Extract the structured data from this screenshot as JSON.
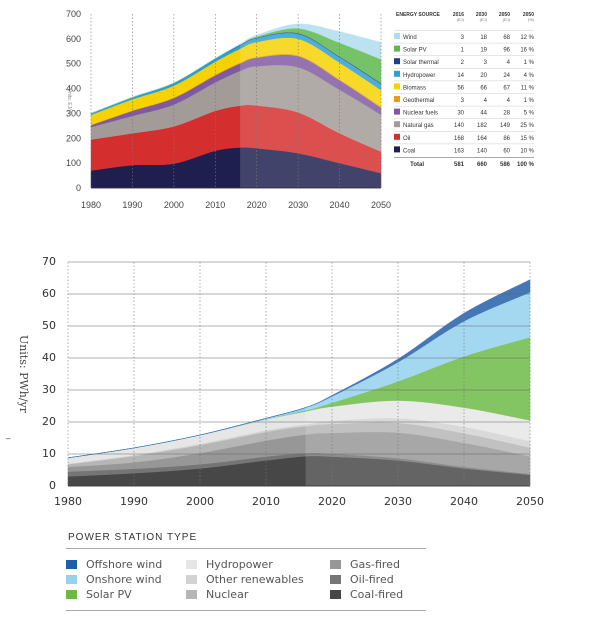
{
  "colors": {
    "c1": {
      "Wind": "#b0dcef",
      "Solar PV": "#5cb84a",
      "Solar thermal": "#1f3f86",
      "Hydropower": "#2a9fd2",
      "Biomass": "#f5d200",
      "Geothermal": "#e79a1e",
      "Nuclear fuels": "#7f5aa2",
      "Natural gas": "#a39b98",
      "Oil": "#d42f2e",
      "Coal": "#1e1f4e"
    },
    "c2": {
      "Offshore wind": "#1f5ea8",
      "Onshore wind": "#93d1ef",
      "Solar PV": "#6cba45",
      "Hydropower": "#e6e6e6",
      "Other renewables": "#d2d2d2",
      "Nuclear": "#b6b6b6",
      "Gas-fired": "#979797",
      "Oil-fired": "#757575",
      "Coal-fired": "#474747"
    }
  },
  "chart_data": [
    {
      "type": "area",
      "title": "",
      "xlabel": "",
      "ylabel": "Units: EJ/yr",
      "x": [
        1980,
        1990,
        2000,
        2010,
        2016,
        2020,
        2030,
        2040,
        2050
      ],
      "xticks": [
        1980,
        1990,
        2000,
        2010,
        2020,
        2030,
        2040,
        2050
      ],
      "ylim": [
        0,
        700
      ],
      "yticks": [
        0,
        100,
        200,
        300,
        400,
        500,
        600,
        700
      ],
      "grid": "vertical dotted",
      "forecast_start": 2016,
      "series": [
        {
          "name": "Coal",
          "values": [
            70,
            92,
            98,
            150,
            163,
            160,
            140,
            100,
            60
          ]
        },
        {
          "name": "Oil",
          "values": [
            125,
            128,
            150,
            160,
            168,
            172,
            164,
            120,
            86
          ]
        },
        {
          "name": "Natural gas",
          "values": [
            50,
            70,
            88,
            115,
            140,
            158,
            182,
            175,
            149
          ]
        },
        {
          "name": "Nuclear fuels",
          "values": [
            8,
            20,
            26,
            28,
            30,
            34,
            44,
            38,
            28
          ]
        },
        {
          "name": "Geothermal",
          "values": [
            1,
            2,
            2,
            3,
            3,
            3,
            4,
            4,
            4
          ]
        },
        {
          "name": "Biomass",
          "values": [
            40,
            45,
            48,
            52,
            56,
            60,
            66,
            67,
            67
          ]
        },
        {
          "name": "Hydropower",
          "values": [
            6,
            8,
            10,
            12,
            14,
            16,
            20,
            22,
            24
          ]
        },
        {
          "name": "Solar thermal",
          "values": [
            0,
            0,
            1,
            1,
            2,
            2,
            3,
            3,
            4
          ]
        },
        {
          "name": "Solar PV",
          "values": [
            0,
            0,
            0,
            0,
            1,
            4,
            19,
            55,
            96
          ]
        },
        {
          "name": "Wind",
          "values": [
            0,
            0,
            0,
            1,
            3,
            6,
            18,
            45,
            68
          ]
        }
      ],
      "table": {
        "header": [
          "ENERGY SOURCE",
          "2016",
          "2030",
          "2050",
          "2050"
        ],
        "units": [
          "",
          "(EJ)",
          "(EJ)",
          "(EJ)",
          "(%)"
        ],
        "rows": [
          [
            "Wind",
            "3",
            "18",
            "68",
            "12 %"
          ],
          [
            "Solar PV",
            "1",
            "19",
            "96",
            "16 %"
          ],
          [
            "Solar thermal",
            "2",
            "3",
            "4",
            "1 %"
          ],
          [
            "Hydropower",
            "14",
            "20",
            "24",
            "4 %"
          ],
          [
            "Biomass",
            "56",
            "66",
            "67",
            "11 %"
          ],
          [
            "Geothermal",
            "3",
            "4",
            "4",
            "1 %"
          ],
          [
            "Nuclear fuels",
            "30",
            "44",
            "28",
            "5 %"
          ],
          [
            "Natural gas",
            "140",
            "182",
            "149",
            "25 %"
          ],
          [
            "Oil",
            "168",
            "164",
            "86",
            "15 %"
          ],
          [
            "Coal",
            "163",
            "140",
            "60",
            "10 %"
          ]
        ],
        "total": [
          "Total",
          "581",
          "660",
          "586",
          "100 %"
        ]
      }
    },
    {
      "type": "area",
      "title": "",
      "xlabel": "",
      "ylabel": "Units: PWh/yr",
      "x": [
        1980,
        1990,
        2000,
        2010,
        2016,
        2020,
        2030,
        2040,
        2050
      ],
      "xticks": [
        1980,
        1990,
        2000,
        2010,
        2020,
        2030,
        2040,
        2050
      ],
      "ylim": [
        0,
        70
      ],
      "yticks": [
        0,
        10,
        20,
        30,
        40,
        50,
        60,
        70
      ],
      "grid": "vertical dotted and horizontal",
      "forecast_start": 2016,
      "series": [
        {
          "name": "Coal-fired",
          "values": [
            3,
            4,
            5.5,
            8,
            9.3,
            9.2,
            8,
            5.5,
            3.5
          ]
        },
        {
          "name": "Oil-fired",
          "values": [
            1.5,
            1.4,
            1.3,
            1.2,
            1.0,
            0.9,
            0.7,
            0.5,
            0.3
          ]
        },
        {
          "name": "Gas-fired",
          "values": [
            1.5,
            2,
            3.5,
            5,
            5.8,
            6.5,
            8,
            7.5,
            5.5
          ]
        },
        {
          "name": "Nuclear",
          "values": [
            0.8,
            2,
            2.5,
            2.7,
            2.6,
            2.8,
            3,
            3,
            2.7
          ]
        },
        {
          "name": "Other renewables",
          "values": [
            0.2,
            0.3,
            0.4,
            0.5,
            0.6,
            0.9,
            1.5,
            2,
            2
          ]
        },
        {
          "name": "Hydropower",
          "values": [
            1.8,
            2.2,
            2.7,
            3.4,
            4,
            4.5,
            5.5,
            6,
            6.5
          ]
        },
        {
          "name": "Solar PV",
          "values": [
            0,
            0,
            0,
            0.05,
            0.3,
            1.2,
            6,
            16,
            26
          ]
        },
        {
          "name": "Onshore wind",
          "values": [
            0,
            0,
            0.05,
            0.3,
            0.9,
            2,
            6,
            11,
            14
          ]
        },
        {
          "name": "Offshore wind",
          "values": [
            0,
            0,
            0,
            0.02,
            0.05,
            0.3,
            1,
            2.5,
            4
          ]
        }
      ]
    }
  ],
  "legend": {
    "title": "POWER STATION TYPE",
    "columns": [
      [
        "Offshore wind",
        "Onshore wind",
        "Solar PV"
      ],
      [
        "Hydropower",
        "Other renewables",
        "Nuclear"
      ],
      [
        "Gas-fired",
        "Oil-fired",
        "Coal-fired"
      ]
    ]
  },
  "page_mark": "–"
}
